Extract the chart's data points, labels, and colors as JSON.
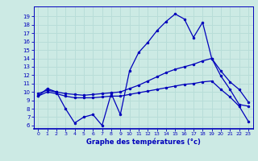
{
  "title": "Graphe des températures (°c)",
  "bg_color": "#cceae4",
  "line_color": "#0000bb",
  "grid_color": "#b8ddd8",
  "x_ticks": [
    0,
    1,
    2,
    3,
    4,
    5,
    6,
    7,
    8,
    9,
    10,
    11,
    12,
    13,
    14,
    15,
    16,
    17,
    18,
    19,
    20,
    21,
    22,
    23
  ],
  "y_ticks": [
    6,
    7,
    8,
    9,
    10,
    11,
    12,
    13,
    14,
    15,
    16,
    17,
    18,
    19
  ],
  "xlim": [
    -0.5,
    23.5
  ],
  "ylim": [
    5.6,
    20.2
  ],
  "line_top": {
    "x": [
      0,
      1,
      2,
      3,
      4,
      5,
      6,
      7,
      8,
      9,
      10,
      11,
      12,
      13,
      14,
      15,
      16,
      17,
      18,
      19,
      20,
      21,
      22,
      23
    ],
    "y": [
      9.5,
      10.4,
      10.0,
      8.0,
      6.3,
      7.0,
      7.3,
      6.0,
      9.8,
      7.3,
      12.5,
      14.7,
      15.9,
      17.3,
      18.4,
      19.3,
      18.7,
      16.5,
      18.3,
      14.0,
      11.9,
      10.3,
      8.5,
      8.3
    ]
  },
  "line_mid": {
    "x": [
      0,
      1,
      2,
      3,
      4,
      5,
      6,
      7,
      8,
      9,
      10,
      11,
      12,
      13,
      14,
      15,
      16,
      17,
      18,
      19,
      20,
      21,
      22,
      23
    ],
    "y": [
      9.8,
      10.2,
      10.0,
      9.8,
      9.7,
      9.6,
      9.7,
      9.8,
      9.9,
      10.0,
      10.4,
      10.8,
      11.3,
      11.8,
      12.3,
      12.7,
      13.0,
      13.3,
      13.7,
      14.0,
      12.5,
      11.2,
      10.3,
      8.8
    ]
  },
  "line_bot": {
    "x": [
      0,
      1,
      2,
      3,
      4,
      5,
      6,
      7,
      8,
      9,
      10,
      11,
      12,
      13,
      14,
      15,
      16,
      17,
      18,
      19,
      20,
      21,
      22,
      23
    ],
    "y": [
      9.5,
      10.0,
      9.8,
      9.5,
      9.3,
      9.3,
      9.3,
      9.4,
      9.5,
      9.5,
      9.7,
      9.9,
      10.1,
      10.3,
      10.5,
      10.7,
      10.9,
      11.0,
      11.2,
      11.3,
      10.3,
      9.4,
      8.3,
      6.5
    ]
  }
}
